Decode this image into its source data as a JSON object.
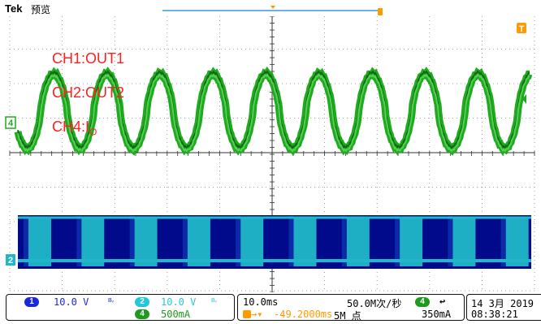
{
  "header": {
    "brand": "Tek",
    "mode": "预览"
  },
  "labels": {
    "ch1": "CH1:OUT1",
    "ch2": "CH2:OUT2",
    "ch4_prefix": "CH4:I",
    "ch4_sub": "O"
  },
  "markers": {
    "ch4": "4",
    "ch2": "2",
    "trigger": "T"
  },
  "channels": {
    "ch1": {
      "num": "1",
      "scale": "10.0 V",
      "bw": "Bᵥ",
      "color": "#1a2bd6"
    },
    "ch2": {
      "num": "2",
      "scale": "10.0 V",
      "bw": "Bᵥ",
      "color": "#25c7d6"
    },
    "ch4": {
      "num": "4",
      "scale": "500mA",
      "color": "#1f9a1f"
    }
  },
  "timebase": {
    "scale": "10.0ms",
    "sample_rate": "50.0M次/秒",
    "position": "-49.2000ms",
    "record": "5M 点"
  },
  "trigger": {
    "channel": "4",
    "slope": "↩",
    "level": "350mA"
  },
  "datetime": {
    "date": "14 3月  2019",
    "time": "08:38:21"
  },
  "colors": {
    "ch4_wave": "#1faa1f",
    "ch12_band": "#000a8a",
    "ch2_pulse": "#20b8c8",
    "grid": "#888888",
    "accent": "#ff9a00"
  }
}
